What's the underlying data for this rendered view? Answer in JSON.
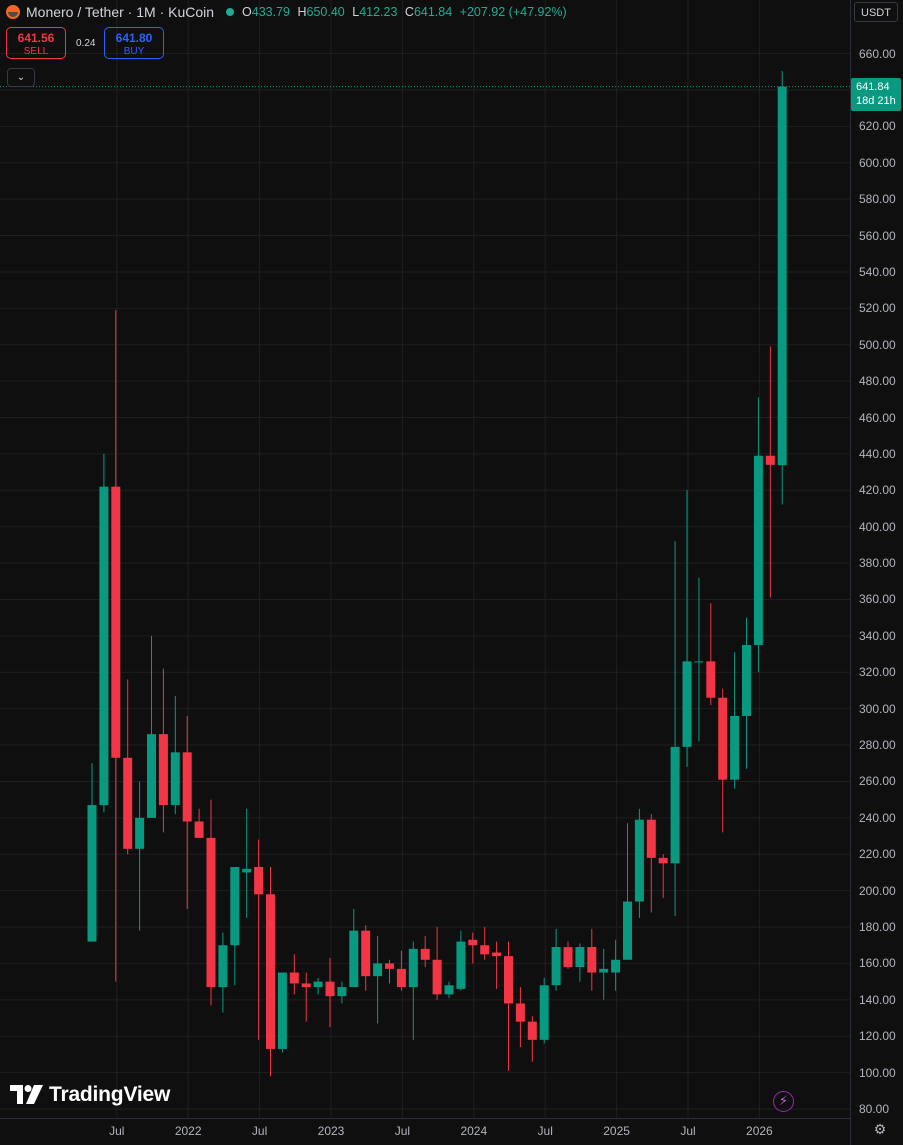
{
  "header": {
    "title": "Monero / Tether · 1M · KuCoin",
    "open_label": "O",
    "open": "433.79",
    "high_label": "H",
    "high": "650.40",
    "low_label": "L",
    "low": "412.23",
    "close_label": "C",
    "close": "641.84",
    "change": "+207.92 (+47.92%)"
  },
  "trade": {
    "sell_price": "641.56",
    "sell_label": "SELL",
    "spread": "0.24",
    "buy_price": "641.80",
    "buy_label": "BUY"
  },
  "currency": "USDT",
  "last_price": {
    "value": "641.84",
    "countdown": "18d 21h"
  },
  "brand": "TradingView",
  "colors": {
    "up": "#089981",
    "down": "#f23645",
    "grid": "#1f1f1f"
  },
  "chart_data": {
    "type": "candlestick",
    "ylim": [
      80,
      660
    ],
    "y_ticks": [
      "660.00",
      "640.00",
      "620.00",
      "600.00",
      "580.00",
      "560.00",
      "540.00",
      "520.00",
      "500.00",
      "480.00",
      "460.00",
      "440.00",
      "420.00",
      "400.00",
      "380.00",
      "360.00",
      "340.00",
      "320.00",
      "300.00",
      "280.00",
      "260.00",
      "240.00",
      "220.00",
      "200.00",
      "180.00",
      "160.00",
      "140.00",
      "120.00",
      "100.00",
      "80.00"
    ],
    "x_ticks": [
      "Jul",
      "2022",
      "Jul",
      "2023",
      "Jul",
      "2024",
      "Jul",
      "2025",
      "Jul",
      "2026"
    ],
    "candles": [
      {
        "date": "2021-05",
        "o": 172,
        "h": 270,
        "l": 172,
        "c": 247
      },
      {
        "date": "2021-06",
        "o": 247,
        "h": 440,
        "l": 243,
        "c": 422
      },
      {
        "date": "2021-07",
        "o": 422,
        "h": 519,
        "l": 150,
        "c": 273
      },
      {
        "date": "2021-08",
        "o": 273,
        "h": 316,
        "l": 220,
        "c": 223
      },
      {
        "date": "2021-09",
        "o": 223,
        "h": 260,
        "l": 178,
        "c": 240
      },
      {
        "date": "2021-10",
        "o": 240,
        "h": 340,
        "l": 240,
        "c": 286
      },
      {
        "date": "2021-11",
        "o": 286,
        "h": 322,
        "l": 232,
        "c": 247
      },
      {
        "date": "2021-12",
        "o": 247,
        "h": 307,
        "l": 242,
        "c": 276
      },
      {
        "date": "2022-01",
        "o": 276,
        "h": 296,
        "l": 190,
        "c": 238
      },
      {
        "date": "2022-02",
        "o": 238,
        "h": 245,
        "l": 230,
        "c": 229
      },
      {
        "date": "2022-03",
        "o": 229,
        "h": 250,
        "l": 137,
        "c": 147
      },
      {
        "date": "2022-04",
        "o": 147,
        "h": 177,
        "l": 133,
        "c": 170
      },
      {
        "date": "2022-05",
        "o": 170,
        "h": 213,
        "l": 148,
        "c": 213
      },
      {
        "date": "2022-06",
        "o": 210,
        "h": 245,
        "l": 185,
        "c": 212
      },
      {
        "date": "2022-07",
        "o": 213,
        "h": 228,
        "l": 118,
        "c": 198
      },
      {
        "date": "2022-08",
        "o": 198,
        "h": 213,
        "l": 98,
        "c": 113
      },
      {
        "date": "2022-09",
        "o": 113,
        "h": 155,
        "l": 111,
        "c": 155
      },
      {
        "date": "2022-10",
        "o": 155,
        "h": 165,
        "l": 143,
        "c": 149
      },
      {
        "date": "2022-11",
        "o": 149,
        "h": 155,
        "l": 128,
        "c": 147
      },
      {
        "date": "2022-12",
        "o": 147,
        "h": 152,
        "l": 143,
        "c": 150
      },
      {
        "date": "2023-01",
        "o": 150,
        "h": 163,
        "l": 125,
        "c": 142
      },
      {
        "date": "2023-02",
        "o": 142,
        "h": 150,
        "l": 138,
        "c": 147
      },
      {
        "date": "2023-03",
        "o": 147,
        "h": 190,
        "l": 147,
        "c": 178
      },
      {
        "date": "2023-04",
        "o": 178,
        "h": 181,
        "l": 145,
        "c": 153
      },
      {
        "date": "2023-05",
        "o": 153,
        "h": 175,
        "l": 127,
        "c": 160
      },
      {
        "date": "2023-06",
        "o": 160,
        "h": 162,
        "l": 149,
        "c": 157
      },
      {
        "date": "2023-07",
        "o": 157,
        "h": 167,
        "l": 145,
        "c": 147
      },
      {
        "date": "2023-08",
        "o": 147,
        "h": 172,
        "l": 118,
        "c": 168
      },
      {
        "date": "2023-09",
        "o": 168,
        "h": 175,
        "l": 158,
        "c": 162
      },
      {
        "date": "2023-10",
        "o": 162,
        "h": 180,
        "l": 140,
        "c": 143
      },
      {
        "date": "2023-11",
        "o": 143,
        "h": 150,
        "l": 141,
        "c": 148
      },
      {
        "date": "2023-12",
        "o": 146,
        "h": 178,
        "l": 145,
        "c": 172
      },
      {
        "date": "2024-01",
        "o": 173,
        "h": 177,
        "l": 160,
        "c": 170
      },
      {
        "date": "2024-02",
        "o": 170,
        "h": 180,
        "l": 162,
        "c": 165
      },
      {
        "date": "2024-03",
        "o": 166,
        "h": 172,
        "l": 146,
        "c": 164
      },
      {
        "date": "2024-04",
        "o": 164,
        "h": 172,
        "l": 101,
        "c": 138
      },
      {
        "date": "2024-05",
        "o": 138,
        "h": 147,
        "l": 114,
        "c": 128
      },
      {
        "date": "2024-06",
        "o": 128,
        "h": 131,
        "l": 106,
        "c": 118
      },
      {
        "date": "2024-07",
        "o": 118,
        "h": 152,
        "l": 116,
        "c": 148
      },
      {
        "date": "2024-08",
        "o": 148,
        "h": 179,
        "l": 145,
        "c": 169
      },
      {
        "date": "2024-09",
        "o": 169,
        "h": 172,
        "l": 157,
        "c": 158
      },
      {
        "date": "2024-10",
        "o": 158,
        "h": 171,
        "l": 150,
        "c": 169
      },
      {
        "date": "2024-11",
        "o": 169,
        "h": 179,
        "l": 145,
        "c": 155
      },
      {
        "date": "2024-12",
        "o": 155,
        "h": 168,
        "l": 140,
        "c": 157
      },
      {
        "date": "2025-01",
        "o": 155,
        "h": 173,
        "l": 145,
        "c": 162
      },
      {
        "date": "2025-02",
        "o": 162,
        "h": 237,
        "l": 162,
        "c": 194
      },
      {
        "date": "2025-03",
        "o": 194,
        "h": 245,
        "l": 185,
        "c": 239
      },
      {
        "date": "2025-04",
        "o": 239,
        "h": 242,
        "l": 188,
        "c": 218
      },
      {
        "date": "2025-05",
        "o": 218,
        "h": 220,
        "l": 196,
        "c": 215
      },
      {
        "date": "2025-06",
        "o": 215,
        "h": 392,
        "l": 186,
        "c": 279
      },
      {
        "date": "2025-07",
        "o": 279,
        "h": 420,
        "l": 268,
        "c": 326
      },
      {
        "date": "2025-08",
        "o": 326,
        "h": 372,
        "l": 282,
        "c": 326
      },
      {
        "date": "2025-09",
        "o": 326,
        "h": 358,
        "l": 302,
        "c": 306
      },
      {
        "date": "2025-10",
        "o": 306,
        "h": 311,
        "l": 232,
        "c": 261
      },
      {
        "date": "2025-11",
        "o": 261,
        "h": 331,
        "l": 256,
        "c": 296
      },
      {
        "date": "2025-12",
        "o": 296,
        "h": 350,
        "l": 267,
        "c": 335
      },
      {
        "date": "2026-01",
        "o": 335,
        "h": 471,
        "l": 320,
        "c": 439
      },
      {
        "date": "2026-02",
        "o": 439,
        "h": 499,
        "l": 361,
        "c": 434
      },
      {
        "date": "2026-03",
        "o": 433.79,
        "h": 650.4,
        "l": 412.23,
        "c": 641.84
      }
    ]
  }
}
